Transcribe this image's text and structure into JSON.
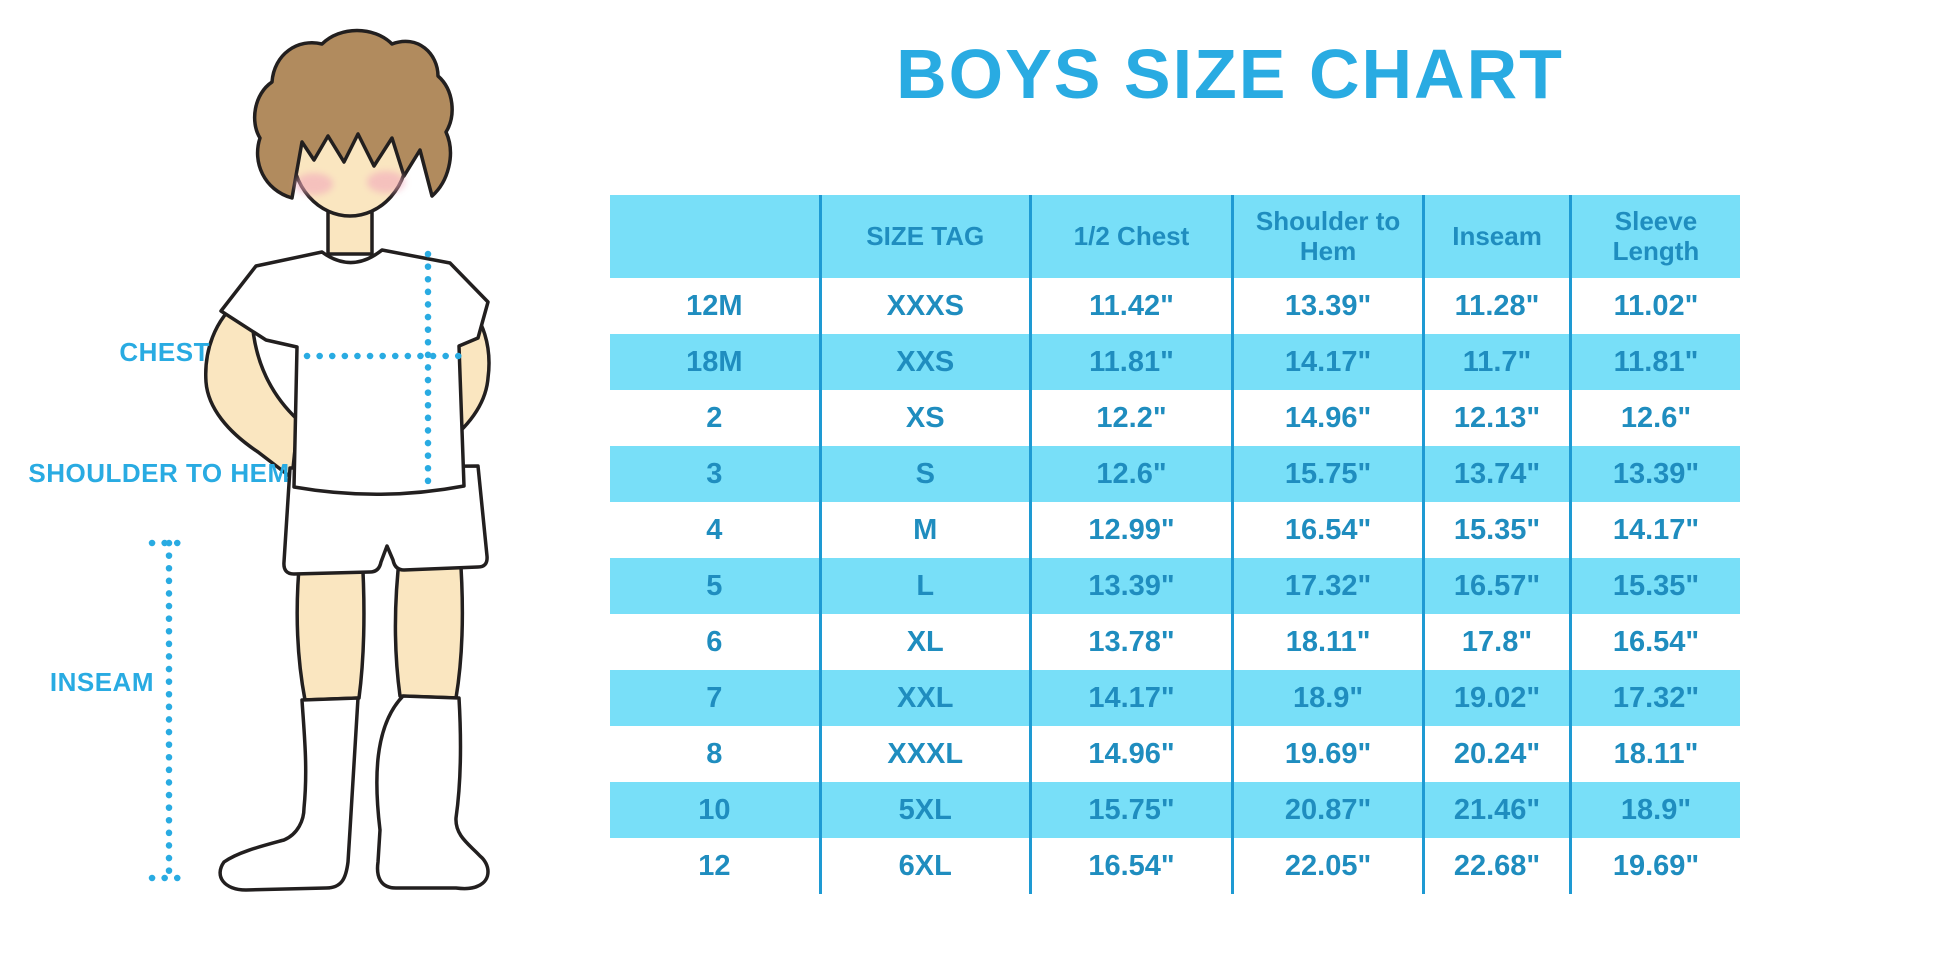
{
  "title": "BOYS SIZE CHART",
  "colors": {
    "accent": "#29ABE2",
    "stripe": "#78DFF8",
    "divider": "#1E9AD3",
    "table_text": "#1F8DBF",
    "outline": "#221F1F",
    "skin": "#FAE6C0",
    "hair": "#B18B5E",
    "blush": "#F2A9BC",
    "garment": "#FFFFFF"
  },
  "figure": {
    "description": "boy-measurement-illustration",
    "labels": {
      "chest": "CHEST",
      "shoulder_to_hem": "SHOULDER TO HEM",
      "inseam": "INSEAM"
    }
  },
  "table": {
    "columns": [
      "",
      "SIZE TAG",
      "1/2 Chest",
      "Shoulder to Hem",
      "Inseam",
      "Sleeve Length"
    ],
    "rows": [
      [
        "12M",
        "XXXS",
        "11.42\"",
        "13.39\"",
        "11.28\"",
        "11.02\""
      ],
      [
        "18M",
        "XXS",
        "11.81\"",
        "14.17\"",
        "11.7\"",
        "11.81\""
      ],
      [
        "2",
        "XS",
        "12.2\"",
        "14.96\"",
        "12.13\"",
        "12.6\""
      ],
      [
        "3",
        "S",
        "12.6\"",
        "15.75\"",
        "13.74\"",
        "13.39\""
      ],
      [
        "4",
        "M",
        "12.99\"",
        "16.54\"",
        "15.35\"",
        "14.17\""
      ],
      [
        "5",
        "L",
        "13.39\"",
        "17.32\"",
        "16.57\"",
        "15.35\""
      ],
      [
        "6",
        "XL",
        "13.78\"",
        "18.11\"",
        "17.8\"",
        "16.54\""
      ],
      [
        "7",
        "XXL",
        "14.17\"",
        "18.9\"",
        "19.02\"",
        "17.32\""
      ],
      [
        "8",
        "XXXL",
        "14.96\"",
        "19.69\"",
        "20.24\"",
        "18.11\""
      ],
      [
        "10",
        "5XL",
        "15.75\"",
        "20.87\"",
        "21.46\"",
        "18.9\""
      ],
      [
        "12",
        "6XL",
        "16.54\"",
        "22.05\"",
        "22.68\"",
        "19.69\""
      ]
    ]
  }
}
